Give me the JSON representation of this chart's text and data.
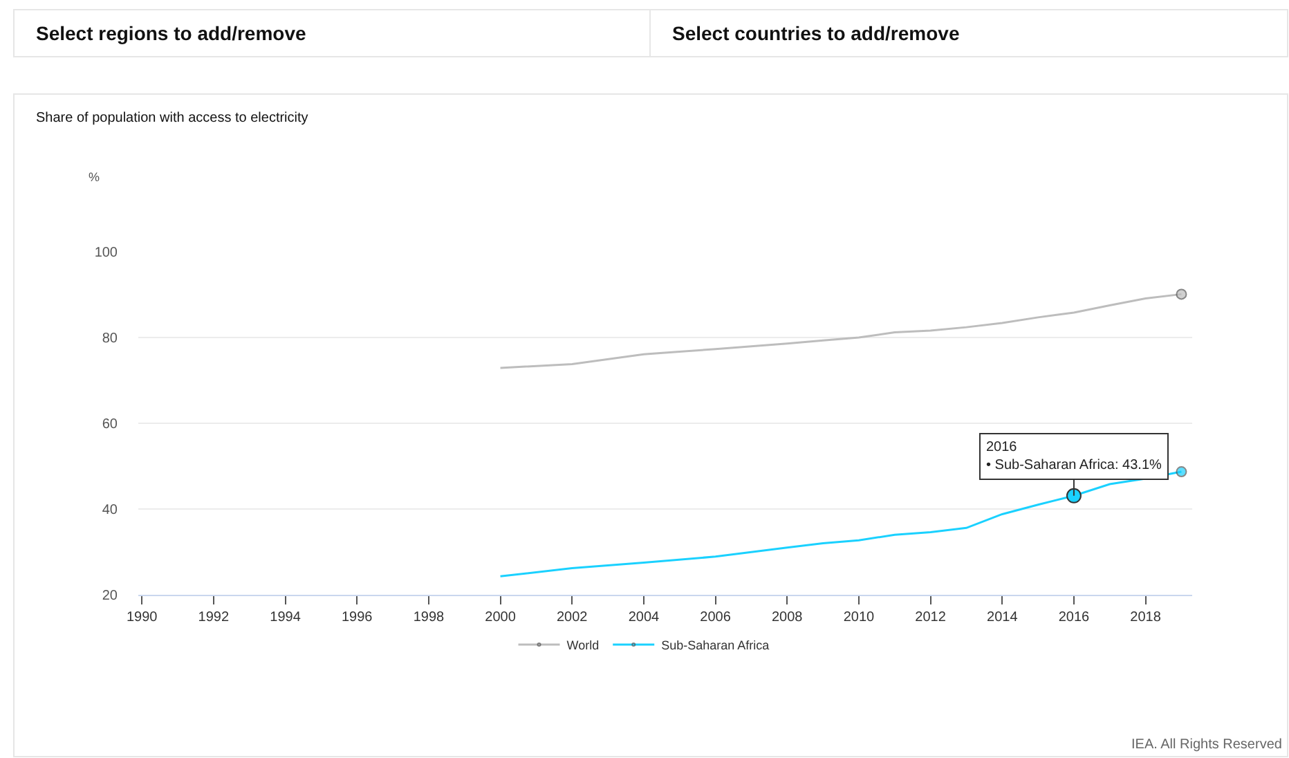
{
  "chart_data": {
    "type": "line",
    "title": "Share of population with access to electricity",
    "ylabel": "%",
    "x": [
      2000,
      2002,
      2004,
      2006,
      2008,
      2009,
      2010,
      2011,
      2012,
      2013,
      2014,
      2015,
      2016,
      2017,
      2018,
      2019
    ],
    "series": [
      {
        "name": "World",
        "color": "#bdbdbd",
        "values": [
          72.9,
          73.8,
          76.1,
          77.3,
          78.6,
          79.3,
          80.0,
          81.2,
          81.6,
          82.4,
          83.4,
          84.7,
          85.8,
          87.5,
          89.1,
          90.1
        ]
      },
      {
        "name": "Sub-Saharan Africa",
        "color": "#1ad1ff",
        "values": [
          24.3,
          26.2,
          27.5,
          28.9,
          31.0,
          32.0,
          32.7,
          34.0,
          34.6,
          35.6,
          38.8,
          41.0,
          43.1,
          45.8,
          47.1,
          48.7
        ]
      }
    ],
    "xlim": [
      1989.9,
      2019.3
    ],
    "xticks": [
      1990,
      1992,
      1994,
      1996,
      1998,
      2000,
      2002,
      2004,
      2006,
      2008,
      2010,
      2012,
      2014,
      2016,
      2018
    ],
    "ylim": [
      20,
      100
    ],
    "yticks": [
      20,
      40,
      60,
      80,
      100
    ],
    "grid": "y",
    "legend": "bottom",
    "line_style": "solid",
    "annotations": [
      "Select regions to add/remove",
      "Select countries to add/remove",
      {
        "text": "2016\n• Sub-Saharan Africa: 43.1%",
        "x": 2016,
        "y": 43.1
      },
      "IEA. All Rights Reserved"
    ]
  }
}
